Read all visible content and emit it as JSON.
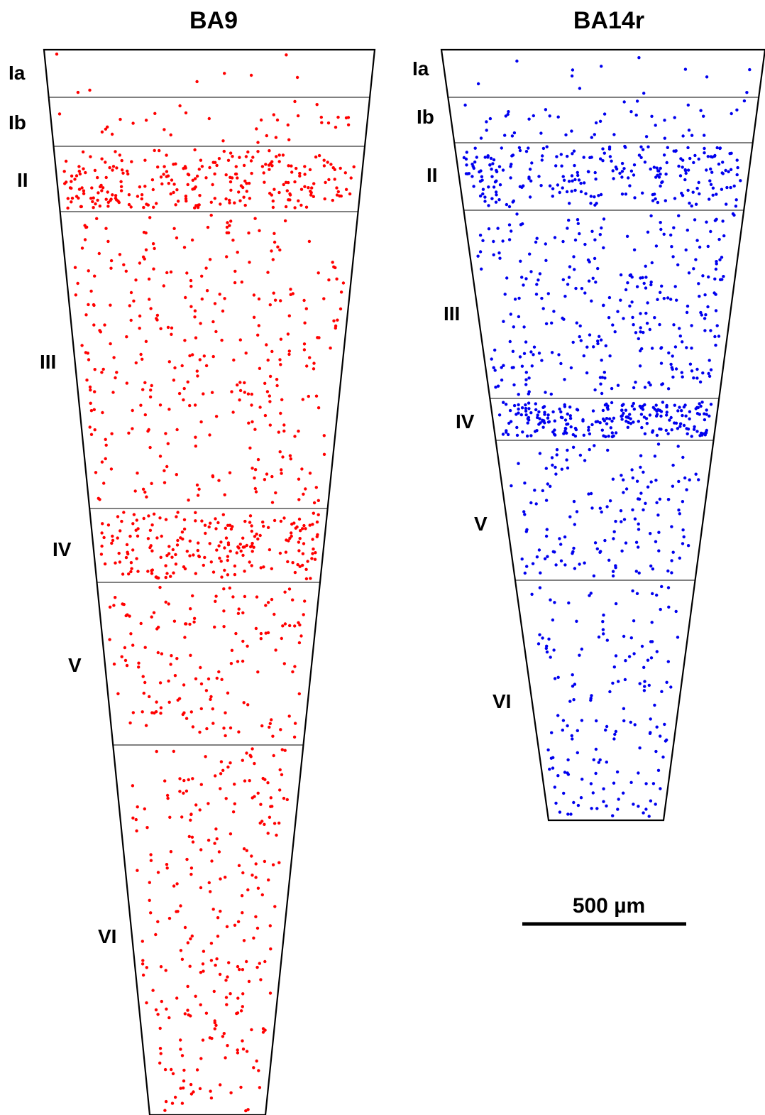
{
  "panels": [
    {
      "id": "ba9",
      "title": "BA9",
      "dot_color": "#ff0000",
      "layers": [
        {
          "label": "Ia",
          "dots": 8
        },
        {
          "label": "Ib",
          "dots": 35
        },
        {
          "label": "II",
          "dots": 260
        },
        {
          "label": "III",
          "dots": 330
        },
        {
          "label": "IV",
          "dots": 210
        },
        {
          "label": "V",
          "dots": 150
        },
        {
          "label": "VI",
          "dots": 260
        }
      ]
    },
    {
      "id": "ba14r",
      "title": "BA14r",
      "dot_color": "#0000ee",
      "layers": [
        {
          "label": "Ia",
          "dots": 12
        },
        {
          "label": "Ib",
          "dots": 45
        },
        {
          "label": "II",
          "dots": 250
        },
        {
          "label": "III",
          "dots": 300
        },
        {
          "label": "IV",
          "dots": 230
        },
        {
          "label": "V",
          "dots": 150
        },
        {
          "label": "VI",
          "dots": 160
        }
      ]
    }
  ],
  "scale_bar": {
    "label": "500 µm"
  }
}
